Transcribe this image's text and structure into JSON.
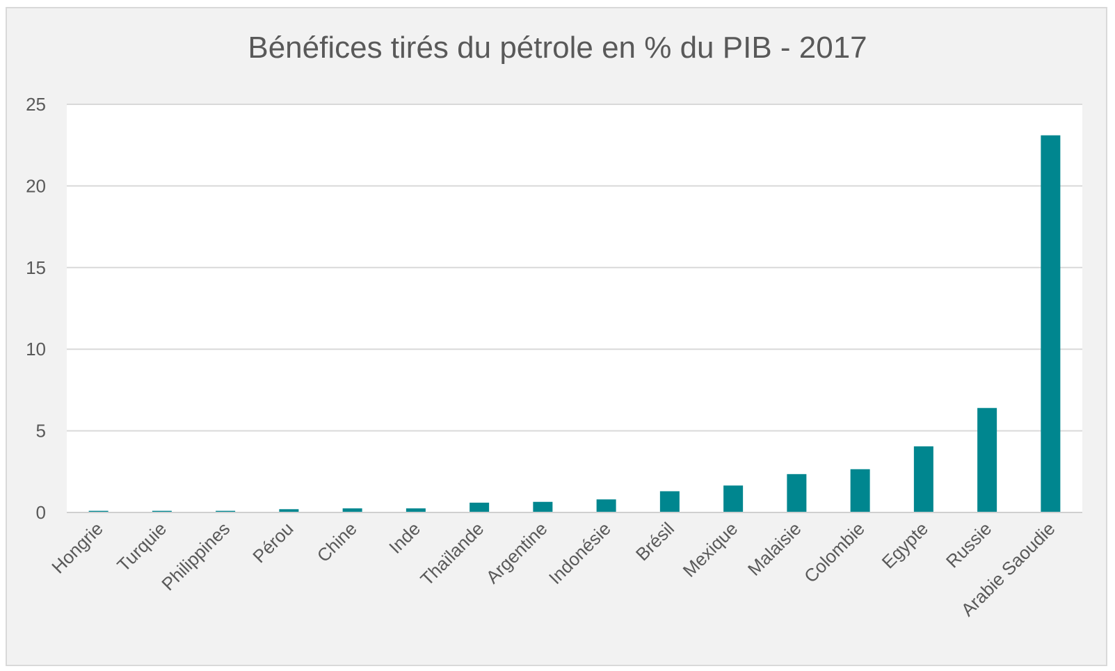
{
  "chart_data": {
    "type": "bar",
    "title": "Bénéfices tirés du pétrole en % du PIB - 2017",
    "xlabel": "",
    "ylabel": "",
    "ylim": [
      0,
      25
    ],
    "yticks": [
      "0",
      "5",
      "10",
      "15",
      "20",
      "25"
    ],
    "grid": true,
    "bar_color": "#00868f",
    "categories": [
      "Hongrie",
      "Turquie",
      "Philippines",
      "Pérou",
      "Chine",
      "Inde",
      "Thaïlande",
      "Argentine",
      "Indonésie",
      "Brésil",
      "Mexique",
      "Malaisie",
      "Colombie",
      "Egypte",
      "Russie",
      "Arabie Saoudie"
    ],
    "values": [
      0.1,
      0.1,
      0.1,
      0.2,
      0.25,
      0.25,
      0.6,
      0.65,
      0.8,
      1.3,
      1.65,
      2.35,
      2.65,
      4.05,
      6.4,
      23.1
    ]
  }
}
